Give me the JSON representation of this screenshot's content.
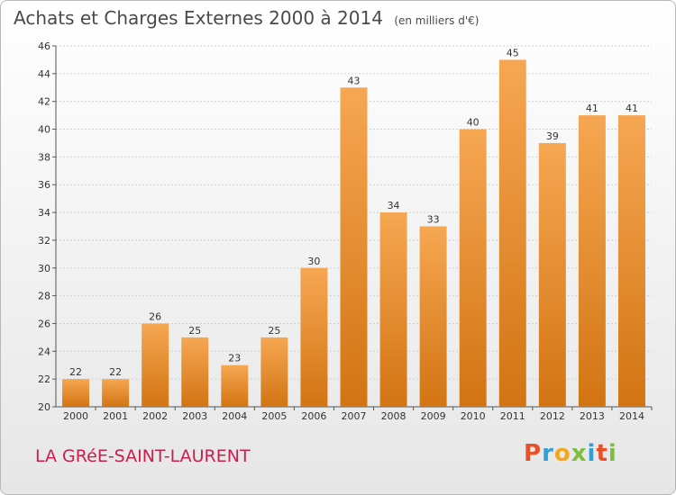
{
  "header": {
    "title": "Achats et Charges Externes 2000 à 2014",
    "unit": "(en milliers d'€)"
  },
  "footer": {
    "commune": "LA GRéE-SAINT-LAURENT",
    "logo": "Proxiti",
    "logo_colors": [
      "#e8502a",
      "#2f9fd8",
      "#f2a81e",
      "#7cbf3a",
      "#2f9fd8",
      "#e8502a",
      "#7cbf3a"
    ]
  },
  "colors": {
    "bar_light": "#f6a752",
    "bar_dark": "#d27413",
    "commune_text": "#c8204e"
  },
  "chart_data": {
    "type": "bar",
    "title": "Achats et Charges Externes 2000 à 2014",
    "subtitle": "(en milliers d'€)",
    "xlabel": "",
    "ylabel": "",
    "categories": [
      "2000",
      "2001",
      "2002",
      "2003",
      "2004",
      "2005",
      "2006",
      "2007",
      "2008",
      "2009",
      "2010",
      "2011",
      "2012",
      "2013",
      "2014"
    ],
    "values": [
      22,
      22,
      26,
      25,
      23,
      25,
      30,
      43,
      34,
      33,
      40,
      45,
      39,
      41,
      41
    ],
    "ylim": [
      20,
      46
    ],
    "yticks": [
      20,
      22,
      24,
      26,
      28,
      30,
      32,
      34,
      36,
      38,
      40,
      42,
      44,
      46
    ],
    "grid": true,
    "data_labels": true
  }
}
